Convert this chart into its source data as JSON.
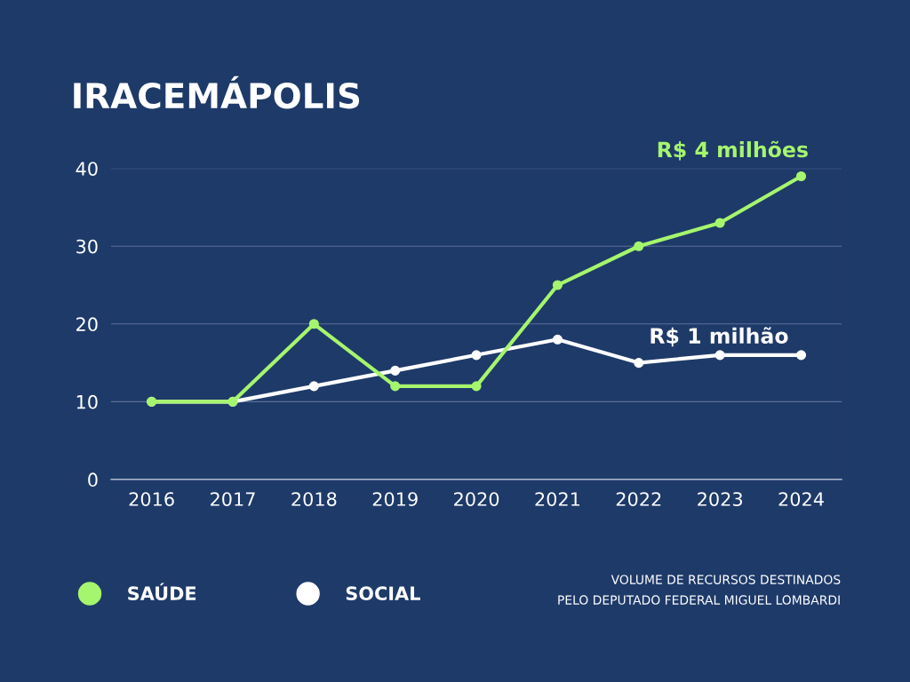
{
  "chart_data": {
    "type": "line",
    "title": "IRACEMÁPOLIS",
    "categories": [
      "2016",
      "2017",
      "2018",
      "2019",
      "2020",
      "2021",
      "2022",
      "2023",
      "2024"
    ],
    "series": [
      {
        "name": "SAÚDE",
        "color": "#a6f56e",
        "values": [
          10,
          10,
          20,
          12,
          12,
          25,
          30,
          33,
          39
        ]
      },
      {
        "name": "SOCIAL",
        "color": "#ffffff",
        "values": [
          10,
          10,
          12,
          14,
          16,
          18,
          15,
          16,
          16
        ]
      }
    ],
    "ylim": [
      0,
      40
    ],
    "yticks": [
      0,
      10,
      20,
      30,
      40
    ],
    "grid": "y",
    "legend": "bottom",
    "marker": "circle",
    "line_style": "solid",
    "annotations": [
      "R$ 4 milhões",
      "R$ 1 milhão",
      "VOLUME DE RECURSOS DESTINADOS\nPELO DEPUTADO FEDERAL MIGUEL LOMBARDI"
    ]
  }
}
